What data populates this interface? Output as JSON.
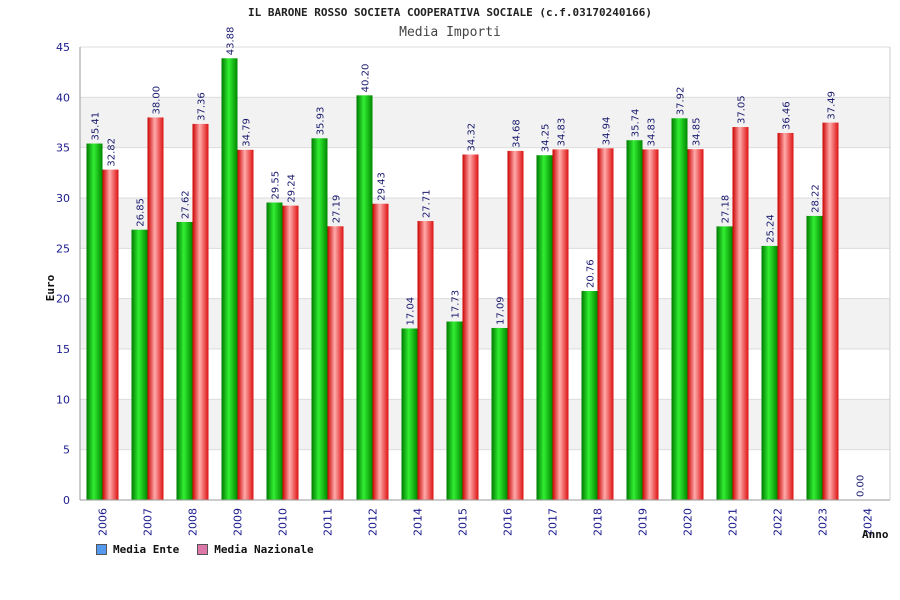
{
  "chart_data": {
    "type": "bar",
    "title": "IL BARONE ROSSO SOCIETA COOPERATIVA SOCIALE (c.f.03170240166)",
    "subtitle": "Media Importi",
    "xlabel": "Anno",
    "ylabel": "Euro",
    "ylim": [
      0,
      45
    ],
    "yticks": [
      0,
      5,
      10,
      15,
      20,
      25,
      30,
      35,
      40,
      45
    ],
    "grid": true,
    "legend_position": "bottom-left",
    "categories": [
      "2006",
      "2007",
      "2008",
      "2009",
      "2010",
      "2011",
      "2012",
      "2014",
      "2015",
      "2016",
      "2017",
      "2018",
      "2019",
      "2020",
      "2021",
      "2022",
      "2023",
      "2024"
    ],
    "series": [
      {
        "name": "Media Ente",
        "color": "#00bb00",
        "legend_color": "#5599ee",
        "values": [
          35.41,
          26.85,
          27.62,
          43.88,
          29.55,
          35.93,
          40.2,
          17.04,
          17.73,
          17.09,
          34.25,
          20.76,
          35.74,
          37.92,
          27.18,
          25.24,
          28.22,
          0.0
        ],
        "labels": [
          "35.41",
          "26.85",
          "27.62",
          "43.88",
          "29.55",
          "35.93",
          "40.20",
          "17.04",
          "17.73",
          "17.09",
          "34.25",
          "20.76",
          "35.74",
          "37.92",
          "27.18",
          "25.24",
          "28.22",
          "0.00"
        ]
      },
      {
        "name": "Media Nazionale",
        "color": "#ee2222",
        "legend_color": "#dd77aa",
        "values": [
          32.82,
          38.0,
          37.36,
          34.79,
          29.24,
          27.19,
          29.43,
          27.71,
          34.32,
          34.68,
          34.83,
          34.94,
          34.83,
          34.85,
          37.05,
          36.46,
          37.49,
          null
        ],
        "labels": [
          "32.82",
          "38.00",
          "37.36",
          "34.79",
          "29.24",
          "27.19",
          "29.43",
          "27.71",
          "34.32",
          "34.68",
          "34.83",
          "34.94",
          "34.83",
          "34.85",
          "37.05",
          "36.46",
          "37.49",
          ""
        ]
      }
    ]
  }
}
